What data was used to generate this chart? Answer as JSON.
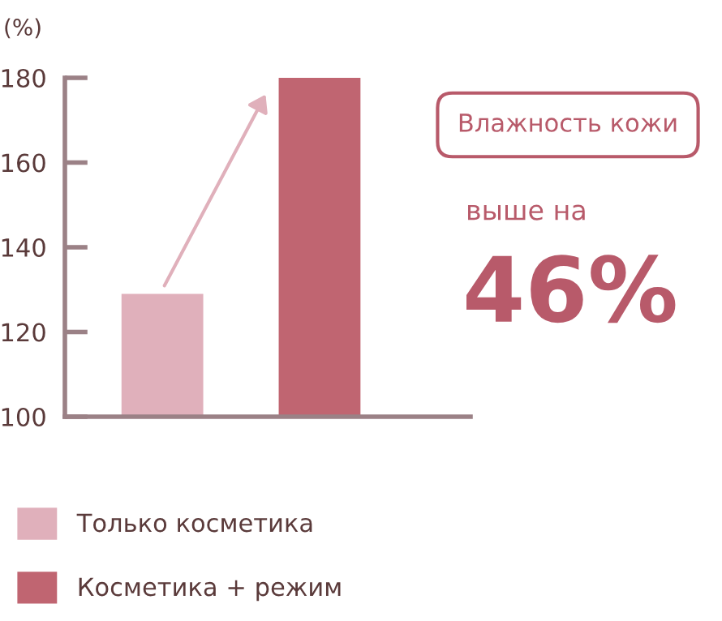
{
  "chart_data": {
    "type": "bar",
    "ylabel": "(%)",
    "categories": [
      null,
      null
    ],
    "series": [
      {
        "name": "Только косметика",
        "color": "#e0b0bb",
        "values": [
          129,
          null
        ]
      },
      {
        "name": "Косметика + режим",
        "color": "#c06571",
        "values": [
          null,
          180
        ]
      }
    ],
    "ylim": [
      100,
      180
    ],
    "yticks": [
      100,
      120,
      140,
      160,
      180
    ],
    "grid": false,
    "legend": "bottom",
    "annotations": [
      "Влажность кожи",
      "выше на",
      "46%"
    ]
  }
}
